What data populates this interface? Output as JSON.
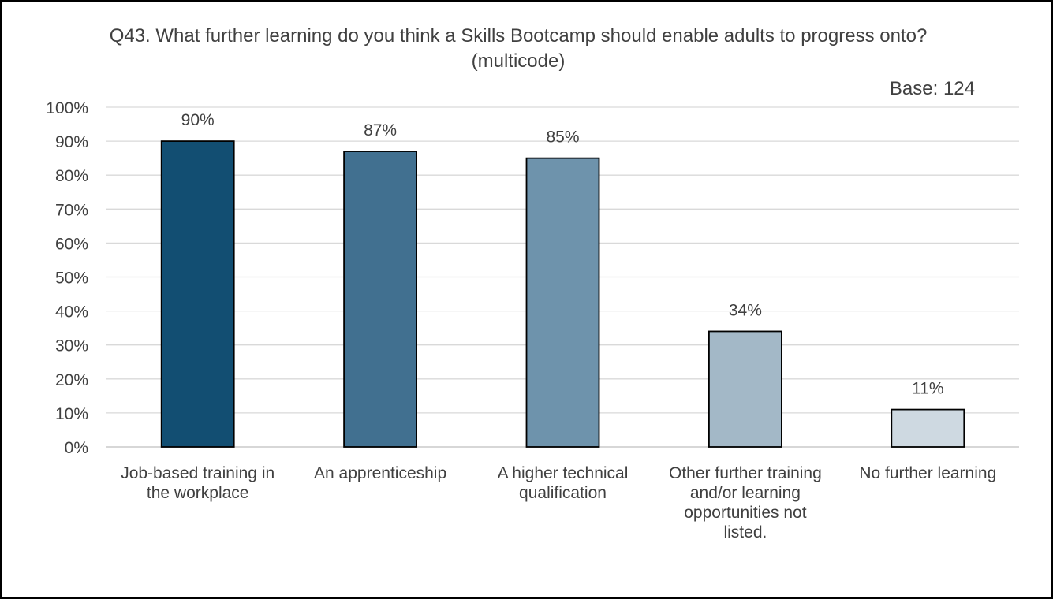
{
  "chart_data": {
    "type": "bar",
    "title": "Q43. What further learning do you think a Skills Bootcamp should enable adults to progress onto? (multicode)",
    "subtitle": "Base: 124",
    "xlabel": "",
    "ylabel": "",
    "ylim": [
      0,
      100
    ],
    "ytick_step": 10,
    "ytick_suffix": "%",
    "grid": true,
    "legend": "none",
    "categories": [
      "Job-based training in the workplace",
      "An apprenticeship",
      "A higher technical qualification",
      "Other further training and/or learning opportunities not listed.",
      "No further learning"
    ],
    "values": [
      90,
      87,
      85,
      34,
      11
    ],
    "data_labels": [
      "90%",
      "87%",
      "85%",
      "34%",
      "11%"
    ],
    "bar_colors": [
      "#124e72",
      "#417090",
      "#6e93ac",
      "#a3b8c7",
      "#ced9e1"
    ]
  }
}
